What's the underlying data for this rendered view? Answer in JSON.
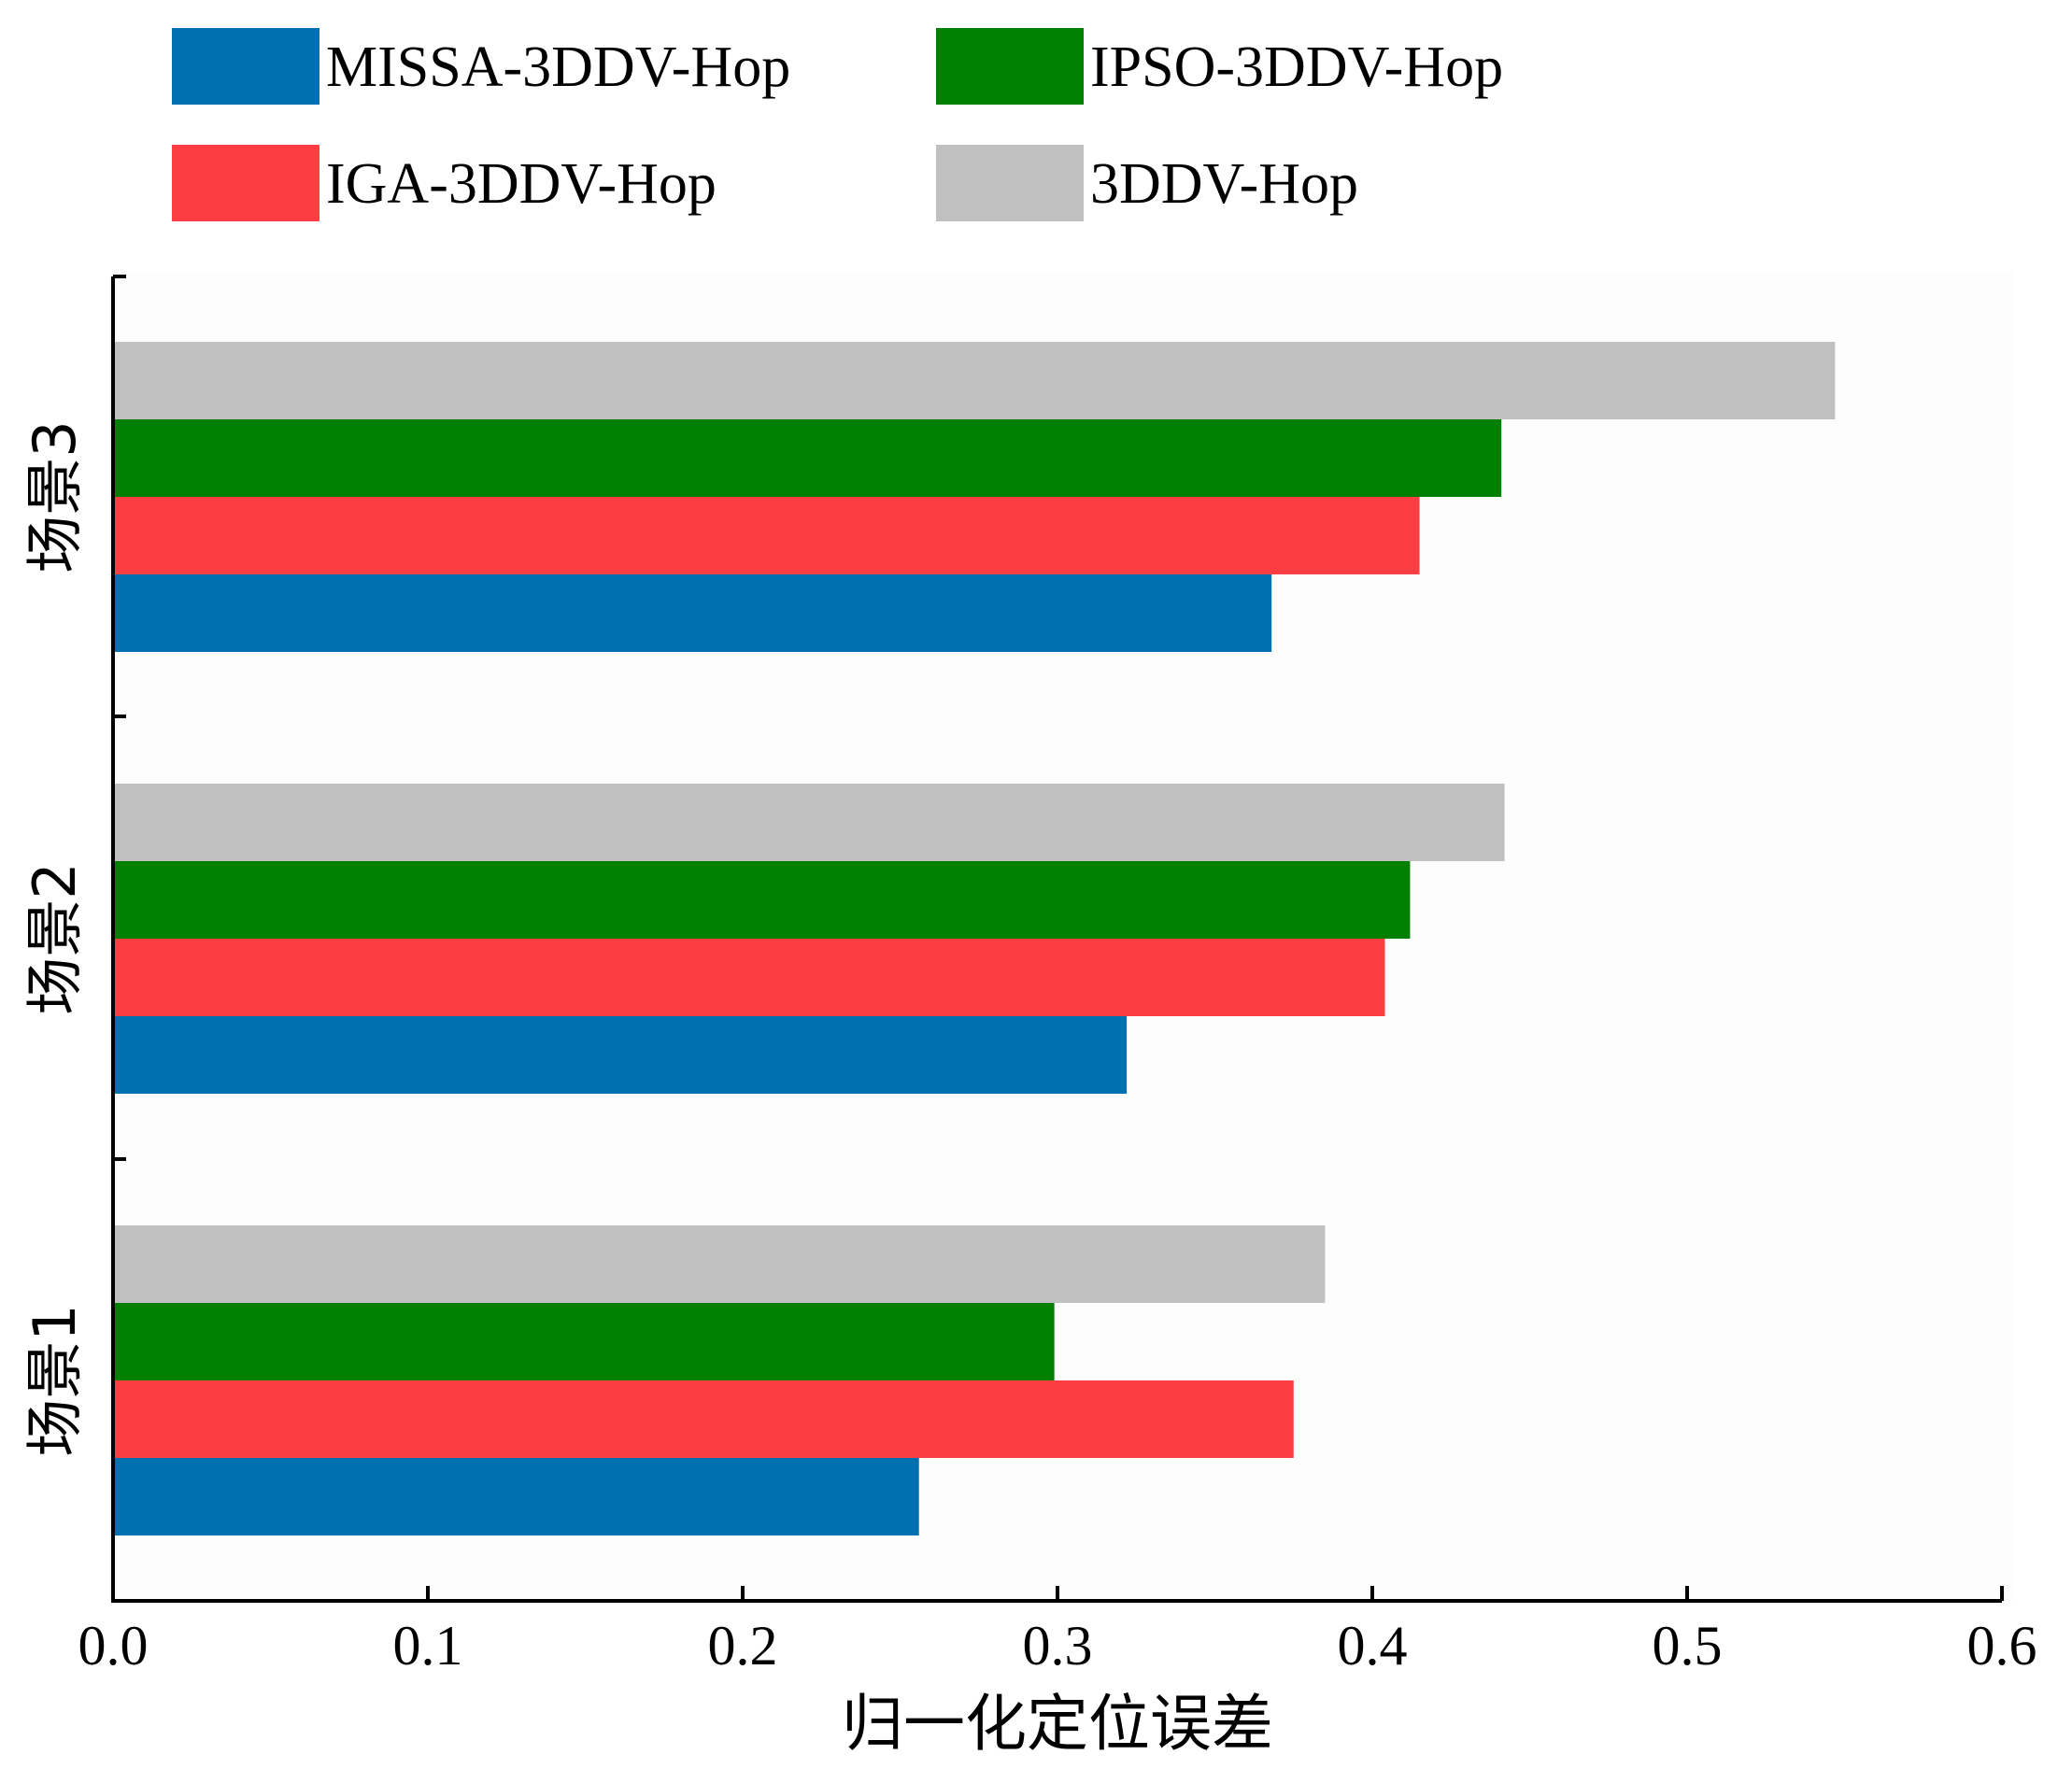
{
  "chart_data": {
    "type": "bar",
    "orientation": "horizontal",
    "title": "",
    "xlabel": "归一化定位误差",
    "ylabel": "",
    "xlim": [
      0,
      0.6
    ],
    "xticks": [
      0.0,
      0.1,
      0.2,
      0.3,
      0.4,
      0.5,
      0.6
    ],
    "xtick_labels": [
      "0.0",
      "0.1",
      "0.2",
      "0.3",
      "0.4",
      "0.5",
      "0.6"
    ],
    "categories": [
      "场景1",
      "场景2",
      "场景3"
    ],
    "series": [
      {
        "name": "MISSA-3DDV-Hop",
        "color": "#0070B0",
        "values": [
          0.256,
          0.322,
          0.368
        ]
      },
      {
        "name": "IGA-3DDV-Hop",
        "color": "#FC3E42",
        "values": [
          0.375,
          0.404,
          0.415
        ]
      },
      {
        "name": "IPSO-3DDV-Hop",
        "color": "#008000",
        "values": [
          0.299,
          0.412,
          0.441
        ]
      },
      {
        "name": "3DDV-Hop",
        "color": "#C0C0C0",
        "values": [
          0.385,
          0.442,
          0.547
        ]
      }
    ],
    "legend": {
      "placement": "top",
      "order": [
        "MISSA-3DDV-Hop",
        "IPSO-3DDV-Hop",
        "IGA-3DDV-Hop",
        "3DDV-Hop"
      ]
    },
    "grid": false
  }
}
